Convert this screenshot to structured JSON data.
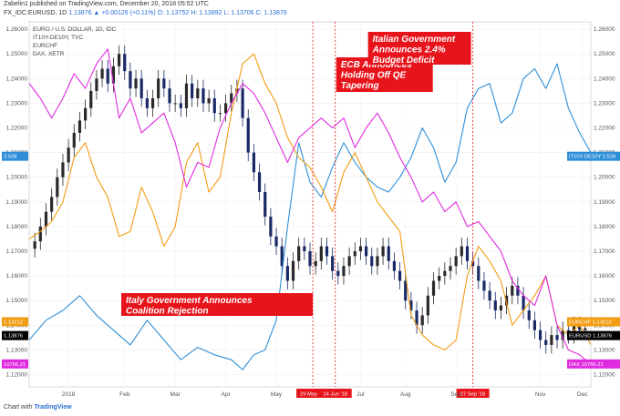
{
  "header": {
    "line1": "Zabelin1 published on TradingView.com, December 20, 2018 05:52 UTC",
    "symbol": "FX_IDC:EURUSD, 1D",
    "ohlc": "1.13876 ▲ +0.00126 (+0.11%) O: 1.13752 H: 1.13892 L: 1.13706 C: 1.13876"
  },
  "footer": {
    "prefix": "Chart with",
    "brand": "TradingView"
  },
  "colors": {
    "eurusd_up": "#2a2a2a",
    "eurusd_down": "#1a2a66",
    "bond": "#2e8fd8",
    "eurchf": "#f39c12",
    "dax": "#e02ae0",
    "annotation": "#e8141b"
  },
  "chart_data": {
    "type": "line",
    "title": "EURO / U.S. DOLLAR, 1D, IDC",
    "legend": [
      "EURO / U.S. DOLLAR, 1D, IDC",
      "IT10Y-DE10Y, TVC",
      "EURCHF",
      "DAX, XETR"
    ],
    "x_ticks": [
      "2018",
      "Feb",
      "Mar",
      "Apr",
      "May",
      "Jul",
      "Aug",
      "Sep",
      "Nov",
      "Dec"
    ],
    "x_range": [
      0,
      100
    ],
    "x_tick_positions": [
      7,
      17,
      26,
      35,
      44,
      59,
      67,
      76,
      91,
      98.5
    ],
    "y_left_ticks": [
      1.26,
      1.25,
      1.24,
      1.23,
      1.22,
      1.21,
      1.2,
      1.19,
      1.18,
      1.17,
      1.16,
      1.15,
      1.14,
      1.13,
      1.12
    ],
    "y_right_ticks": [
      1.26,
      1.25,
      1.24,
      1.23,
      1.22,
      1.21,
      1.2,
      1.19,
      1.18,
      1.17,
      1.16,
      1.15,
      1.14,
      1.13,
      1.12
    ],
    "ylim": [
      1.115,
      1.263
    ],
    "series": [
      {
        "name": "EURUSD",
        "kind": "candlestick",
        "x": [
          1,
          2,
          3,
          4,
          5,
          6,
          7,
          8,
          9,
          10,
          11,
          12,
          13,
          14,
          15,
          16,
          17,
          18,
          19,
          20,
          21,
          22,
          23,
          24,
          25,
          26,
          27,
          28,
          29,
          30,
          31,
          32,
          33,
          34,
          35,
          36,
          37,
          38,
          39,
          40,
          41,
          42,
          43,
          44,
          45,
          46,
          47,
          48,
          49,
          50,
          51,
          52,
          53,
          54,
          55,
          56,
          57,
          58,
          59,
          60,
          61,
          62,
          63,
          64,
          65,
          66,
          67,
          68,
          69,
          70,
          71,
          72,
          73,
          74,
          75,
          76,
          77,
          78,
          79,
          80,
          81,
          82,
          83,
          84,
          85,
          86,
          87,
          88,
          89,
          90,
          91,
          92,
          93,
          94,
          95,
          96,
          97,
          98,
          99
        ],
        "y": [
          1.174,
          1.18,
          1.186,
          1.192,
          1.2,
          1.206,
          1.212,
          1.218,
          1.223,
          1.228,
          1.235,
          1.24,
          1.244,
          1.238,
          1.245,
          1.25,
          1.243,
          1.236,
          1.24,
          1.232,
          1.228,
          1.232,
          1.24,
          1.236,
          1.23,
          1.23,
          1.228,
          1.238,
          1.232,
          1.236,
          1.23,
          1.232,
          1.226,
          1.226,
          1.23,
          1.234,
          1.236,
          1.224,
          1.21,
          1.202,
          1.194,
          1.184,
          1.176,
          1.172,
          1.164,
          1.158,
          1.166,
          1.172,
          1.17,
          1.164,
          1.166,
          1.172,
          1.168,
          1.162,
          1.16,
          1.164,
          1.168,
          1.17,
          1.172,
          1.168,
          1.164,
          1.168,
          1.172,
          1.166,
          1.162,
          1.158,
          1.15,
          1.146,
          1.14,
          1.144,
          1.152,
          1.158,
          1.16,
          1.162,
          1.164,
          1.168,
          1.172,
          1.166,
          1.164,
          1.158,
          1.154,
          1.15,
          1.146,
          1.148,
          1.152,
          1.156,
          1.152,
          1.146,
          1.142,
          1.138,
          1.134,
          1.132,
          1.136,
          1.134,
          1.138,
          1.136,
          1.14,
          1.138,
          1.13876
        ]
      },
      {
        "name": "IT10Y-DE10Y",
        "x": [
          0,
          3,
          6,
          9,
          12,
          15,
          18,
          21,
          24,
          27,
          30,
          33,
          36,
          38,
          40,
          42,
          44,
          46,
          48,
          50,
          52,
          54,
          56,
          58,
          60,
          62,
          64,
          66,
          68,
          70,
          72,
          74,
          76,
          78,
          80,
          82,
          84,
          86,
          88,
          90,
          92,
          94,
          96,
          98,
          100
        ],
        "y": [
          1.134,
          1.142,
          1.146,
          1.152,
          1.144,
          1.138,
          1.132,
          1.142,
          1.134,
          1.126,
          1.131,
          1.128,
          1.126,
          1.122,
          1.128,
          1.13,
          1.142,
          1.18,
          1.214,
          1.198,
          1.192,
          1.204,
          1.214,
          1.206,
          1.2,
          1.196,
          1.194,
          1.2,
          1.208,
          1.22,
          1.212,
          1.198,
          1.206,
          1.228,
          1.236,
          1.238,
          1.222,
          1.226,
          1.24,
          1.244,
          1.236,
          1.246,
          1.228,
          1.218,
          1.21
        ]
      },
      {
        "name": "EURCHF",
        "x": [
          0,
          2,
          4,
          6,
          8,
          10,
          12,
          14,
          16,
          18,
          20,
          22,
          24,
          26,
          28,
          30,
          32,
          34,
          36,
          38,
          40,
          42,
          44,
          46,
          48,
          50,
          52,
          54,
          56,
          58,
          60,
          62,
          64,
          66,
          68,
          70,
          72,
          74,
          76,
          78,
          80,
          82,
          84,
          86,
          88,
          90,
          92,
          94,
          96,
          98,
          100
        ],
        "y": [
          1.175,
          1.178,
          1.182,
          1.19,
          1.208,
          1.214,
          1.2,
          1.192,
          1.176,
          1.178,
          1.196,
          1.186,
          1.172,
          1.18,
          1.206,
          1.214,
          1.194,
          1.2,
          1.226,
          1.246,
          1.25,
          1.238,
          1.23,
          1.216,
          1.208,
          1.204,
          1.196,
          1.186,
          1.202,
          1.21,
          1.2,
          1.19,
          1.184,
          1.178,
          1.144,
          1.136,
          1.132,
          1.13,
          1.134,
          1.16,
          1.172,
          1.166,
          1.158,
          1.14,
          1.146,
          1.152,
          1.16,
          1.14,
          1.136,
          1.14,
          1.13212
        ]
      },
      {
        "name": "DAX",
        "x": [
          0,
          2,
          4,
          6,
          8,
          10,
          12,
          14,
          16,
          18,
          20,
          22,
          24,
          26,
          28,
          30,
          32,
          34,
          36,
          38,
          40,
          42,
          44,
          46,
          48,
          50,
          52,
          54,
          56,
          58,
          60,
          62,
          64,
          66,
          68,
          70,
          72,
          74,
          76,
          78,
          80,
          82,
          84,
          86,
          88,
          90,
          92,
          94,
          96,
          98,
          100
        ],
        "y": [
          1.238,
          1.232,
          1.224,
          1.232,
          1.242,
          1.236,
          1.246,
          1.252,
          1.224,
          1.232,
          1.218,
          1.222,
          1.226,
          1.214,
          1.196,
          1.206,
          1.204,
          1.22,
          1.23,
          1.238,
          1.234,
          1.226,
          1.216,
          1.206,
          1.216,
          1.22,
          1.224,
          1.22,
          1.224,
          1.212,
          1.22,
          1.226,
          1.218,
          1.208,
          1.2,
          1.19,
          1.194,
          1.186,
          1.19,
          1.18,
          1.182,
          1.176,
          1.17,
          1.158,
          1.152,
          1.148,
          1.16,
          1.14,
          1.13,
          1.128,
          1.124
        ]
      }
    ],
    "left_tags": [
      {
        "label": "2.528",
        "value": 1.2085,
        "color": "#2e8fd8"
      },
      {
        "label": "1.13212",
        "value": 1.1414,
        "color": "#f39c12"
      },
      {
        "label": "1.13876",
        "value": 1.1358,
        "color": "#000000"
      },
      {
        "label": "10766.21",
        "value": 1.1243,
        "color": "#e02ae0"
      }
    ],
    "right_tags": [
      {
        "label": "IT10Y-DE10Y 2.528",
        "value": 1.2085,
        "color": "#2e8fd8"
      },
      {
        "label": "EURCHF 1.13212",
        "value": 1.1414,
        "color": "#f39c12"
      },
      {
        "label": "EURUSD 1.13876",
        "value": 1.1358,
        "color": "#000000"
      },
      {
        "label": "DAX 10766.21",
        "value": 1.1243,
        "color": "#e02ae0"
      }
    ],
    "events": [
      {
        "x": 50.5,
        "date": "29 May '18"
      },
      {
        "x": 54.5,
        "date": "14 Jun '18"
      },
      {
        "x": 79,
        "date": "27 Sep '18"
      }
    ],
    "annotations": [
      {
        "lines": [
          "ECB Announces",
          "Holding Off QE",
          "Tapering"
        ],
        "anchor": "after-event-2"
      },
      {
        "lines": [
          "Italian Government",
          "Announces 2.4%",
          "Budget Deficit"
        ],
        "anchor": "before-event-3"
      },
      {
        "lines": [
          "Italy Government Announces",
          "Coalition Rejection"
        ],
        "anchor": "before-event-1"
      }
    ]
  }
}
